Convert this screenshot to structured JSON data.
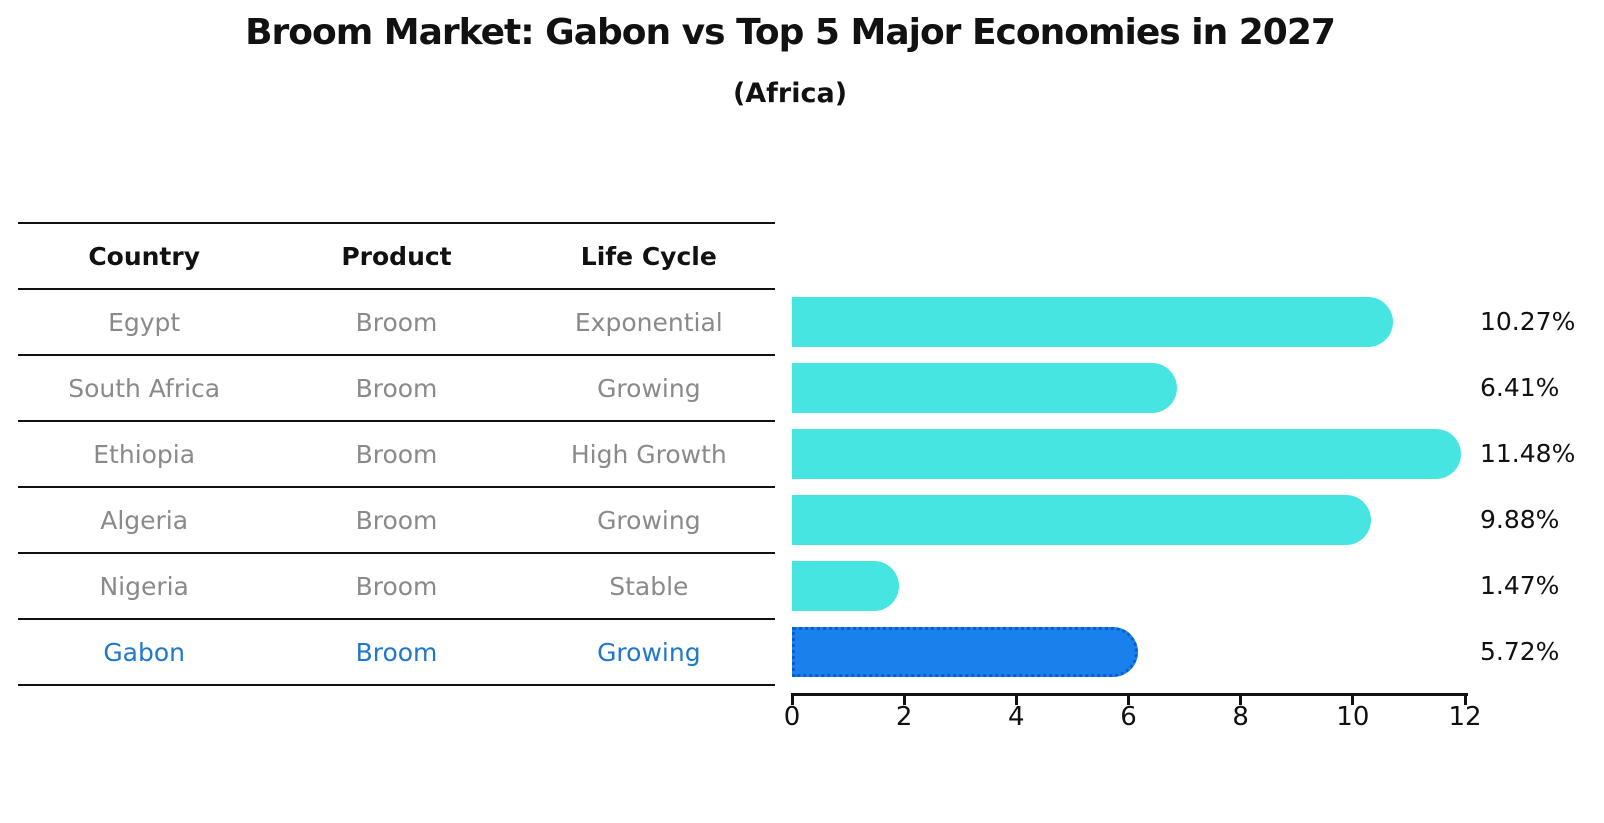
{
  "title": "Broom Market: Gabon vs Top 5 Major Economies in 2027",
  "subtitle": "(Africa)",
  "table": {
    "headers": [
      "Country",
      "Product",
      "Life Cycle"
    ],
    "rows": [
      {
        "country": "Egypt",
        "product": "Broom",
        "life_cycle": "Exponential",
        "highlight": false
      },
      {
        "country": "South Africa",
        "product": "Broom",
        "life_cycle": "Growing",
        "highlight": false
      },
      {
        "country": "Ethiopia",
        "product": "Broom",
        "life_cycle": "High Growth",
        "highlight": false
      },
      {
        "country": "Algeria",
        "product": "Broom",
        "life_cycle": "Growing",
        "highlight": false
      },
      {
        "country": "Nigeria",
        "product": "Broom",
        "life_cycle": "Stable",
        "highlight": false
      },
      {
        "country": "Gabon",
        "product": "Broom",
        "life_cycle": "Growing",
        "highlight": true
      }
    ]
  },
  "chart_data": {
    "type": "bar",
    "orientation": "horizontal",
    "title": "Broom Market: Gabon vs Top 5 Major Economies in 2027",
    "subtitle": "(Africa)",
    "categories": [
      "Egypt",
      "South Africa",
      "Ethiopia",
      "Algeria",
      "Nigeria",
      "Gabon"
    ],
    "values": [
      10.27,
      6.41,
      11.48,
      9.88,
      1.47,
      5.72
    ],
    "value_labels": [
      "10.27%",
      "6.41%",
      "11.48%",
      "9.88%",
      "1.47%",
      "5.72%"
    ],
    "x_ticks": [
      "0",
      "2",
      "4",
      "6",
      "8",
      "10",
      "12"
    ],
    "xlim": [
      0,
      12
    ],
    "grid": false,
    "legend": false,
    "highlight_index": 5,
    "colors": {
      "bar": "#46E5E1",
      "highlight_bar": "#1A80EC",
      "highlight_border": "#0D5BD0",
      "highlight_text": "#1F78CE",
      "row_text": "#8A8A8A",
      "axis": "#111111"
    }
  }
}
